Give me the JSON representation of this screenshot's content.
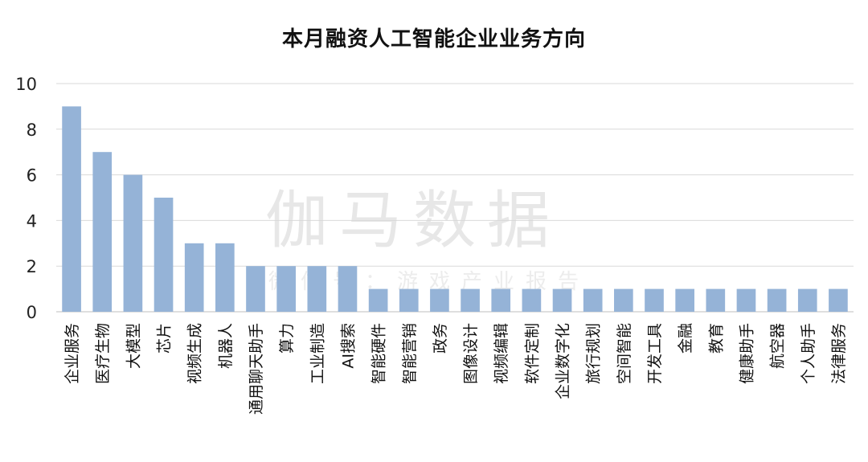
{
  "title": "本月融资人工智能企业业务方向",
  "watermark": {
    "main": "伽马数据",
    "sub": "微信号：游戏产业报告"
  },
  "colors": {
    "bar": "#95b3d7",
    "grid": "#d9d9d9",
    "axis": "#bfbfbf"
  },
  "chart_data": {
    "type": "bar",
    "title": "本月融资人工智能企业业务方向",
    "xlabel": "",
    "ylabel": "",
    "ylim": [
      0,
      10
    ],
    "yticks": [
      0,
      2,
      4,
      6,
      8,
      10
    ],
    "grid": true,
    "categories": [
      "企业服务",
      "医疗生物",
      "大模型",
      "芯片",
      "视频生成",
      "机器人",
      "通用聊天助手",
      "算力",
      "工业制造",
      "AI搜索",
      "智能硬件",
      "智能营销",
      "政务",
      "图像设计",
      "视频编辑",
      "软件定制",
      "企业数字化",
      "旅行规划",
      "空间智能",
      "开发工具",
      "金融",
      "教育",
      "健康助手",
      "航空器",
      "个人助手",
      "法律服务"
    ],
    "values": [
      9,
      7,
      6,
      5,
      3,
      3,
      2,
      2,
      2,
      2,
      1,
      1,
      1,
      1,
      1,
      1,
      1,
      1,
      1,
      1,
      1,
      1,
      1,
      1,
      1,
      1
    ]
  }
}
